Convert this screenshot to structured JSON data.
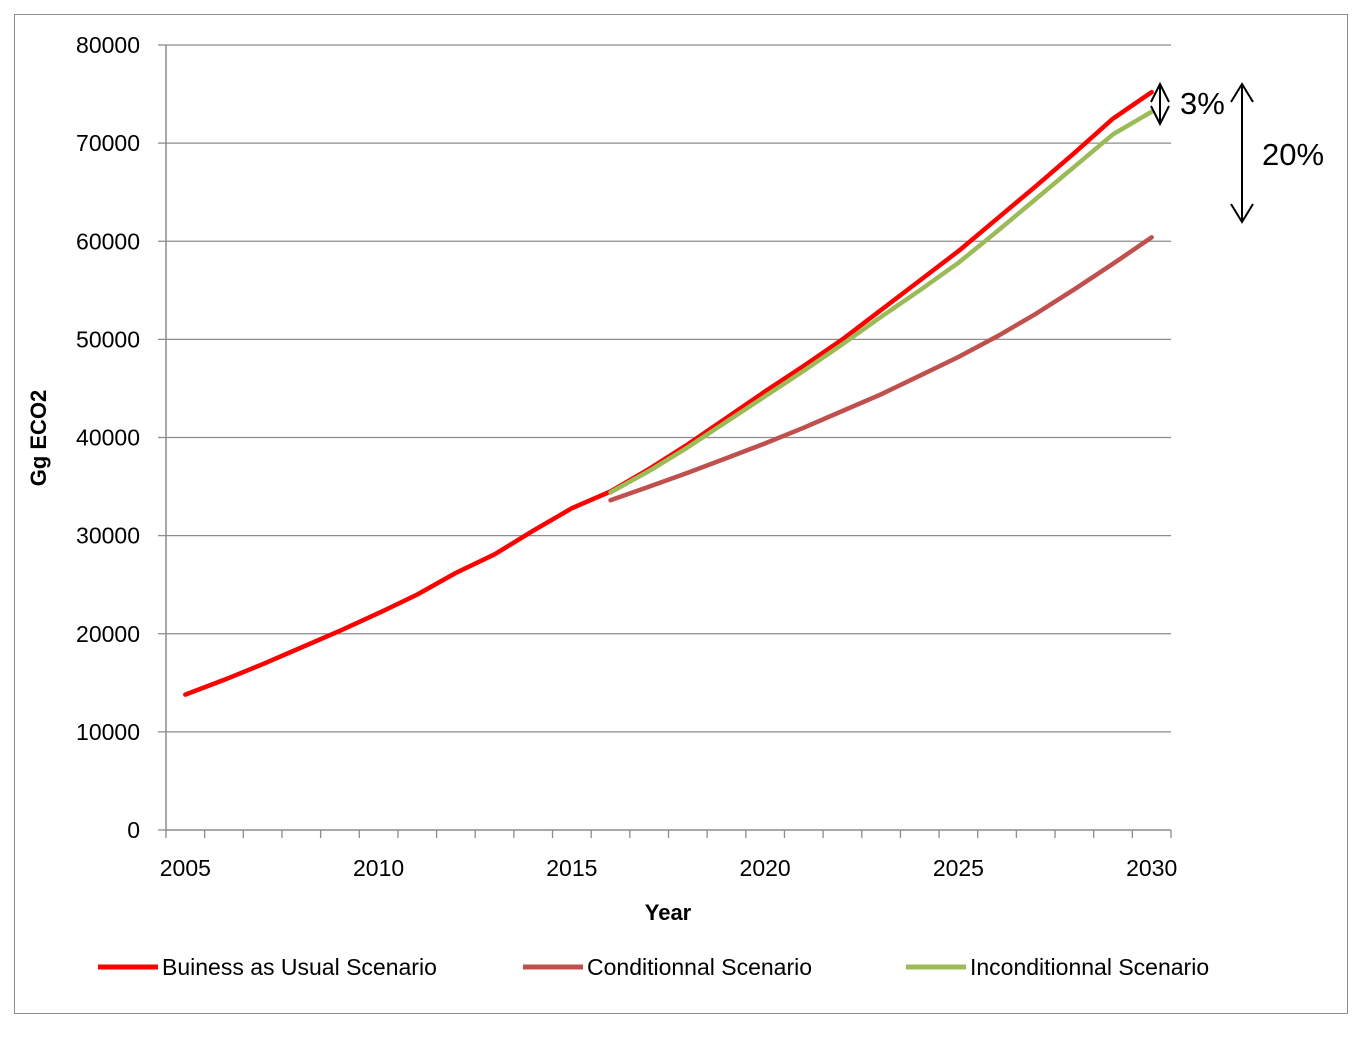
{
  "chart_data": {
    "type": "line",
    "title": "",
    "xlabel": "Year",
    "ylabel": "Gg ECO2",
    "xlim": [
      2004.5,
      2030.5
    ],
    "ylim": [
      0,
      80000
    ],
    "xticks": [
      2005,
      2010,
      2015,
      2020,
      2025,
      2030
    ],
    "yticks": [
      0,
      10000,
      20000,
      30000,
      40000,
      50000,
      60000,
      70000,
      80000
    ],
    "grid": "horizontal",
    "legend_position": "bottom",
    "series": [
      {
        "name": "Buiness as Usual Scenario",
        "color": "#ff0000",
        "x": [
          2005,
          2006,
          2007,
          2008,
          2009,
          2010,
          2011,
          2012,
          2013,
          2014,
          2015,
          2016,
          2017,
          2018,
          2019,
          2020,
          2021,
          2022,
          2023,
          2024,
          2025,
          2026,
          2027,
          2028,
          2029,
          2030
        ],
        "y": [
          13800,
          15300,
          16900,
          18600,
          20300,
          22100,
          24000,
          26200,
          28100,
          30500,
          32800,
          34500,
          36800,
          39300,
          42000,
          44700,
          47300,
          50000,
          53000,
          56000,
          59000,
          62300,
          65600,
          69000,
          72500,
          75200
        ]
      },
      {
        "name": "Conditionnal Scenario",
        "color": "#c0504d",
        "x": [
          2016,
          2017,
          2018,
          2019,
          2020,
          2021,
          2022,
          2023,
          2024,
          2025,
          2026,
          2027,
          2028,
          2029,
          2030
        ],
        "y": [
          33600,
          35000,
          36400,
          37900,
          39400,
          41000,
          42700,
          44400,
          46300,
          48200,
          50300,
          52600,
          55100,
          57700,
          60400
        ]
      },
      {
        "name": "Inconditionnal Scenario",
        "color": "#9bbb59",
        "x": [
          2016,
          2017,
          2018,
          2019,
          2020,
          2021,
          2022,
          2023,
          2024,
          2025,
          2026,
          2027,
          2028,
          2029,
          2030
        ],
        "y": [
          34400,
          36600,
          39000,
          41600,
          44200,
          46800,
          49500,
          52300,
          55000,
          57800,
          61000,
          64300,
          67600,
          70900,
          73200
        ]
      }
    ],
    "annotations": [
      {
        "text": "3%"
      },
      {
        "text": "20%"
      }
    ]
  }
}
